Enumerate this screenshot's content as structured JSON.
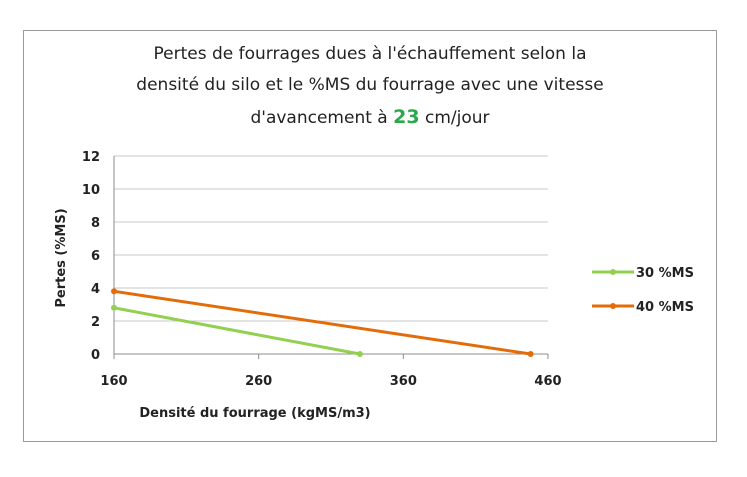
{
  "chart_data": {
    "type": "line",
    "title": {
      "line1": "Pertes de fourrages dues à l'échauffement selon la",
      "line2": "densité du silo et le %MS du fourrage avec une vitesse",
      "line3_prefix": "d'avancement à ",
      "line3_value": "23",
      "line3_suffix": " cm/jour"
    },
    "xlabel": "Densité du fourrage (kgMS/m3)",
    "ylabel": "Pertes (%MS)",
    "xlim": [
      160,
      460
    ],
    "ylim": [
      0,
      12
    ],
    "x_ticks": [
      160,
      260,
      360,
      460
    ],
    "y_ticks": [
      0,
      2,
      4,
      6,
      8,
      10,
      12
    ],
    "grid": "horizontal",
    "legend_position": "right",
    "series": [
      {
        "name": "30 %MS",
        "color": "#92d050",
        "x": [
          160,
          330
        ],
        "y": [
          2.8,
          0
        ]
      },
      {
        "name": "40 %MS",
        "color": "#e36c09",
        "x": [
          160,
          448
        ],
        "y": [
          3.8,
          0
        ]
      }
    ]
  }
}
